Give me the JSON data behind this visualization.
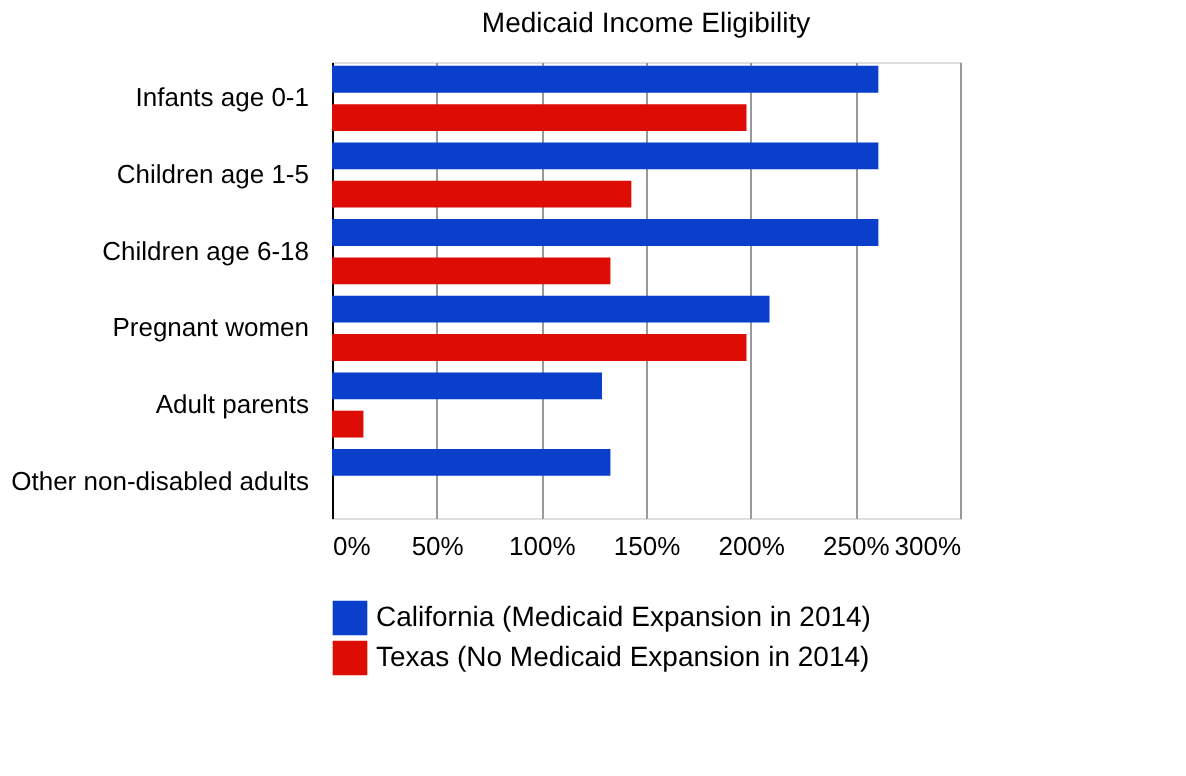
{
  "chart_data": {
    "type": "bar",
    "orientation": "horizontal",
    "title": "Medicaid Income Eligibility",
    "categories": [
      "Infants age 0-1",
      "Children age 1-5",
      "Children age 6-18",
      "Pregnant women",
      "Adult parents",
      "Other non-disabled adults"
    ],
    "series": [
      {
        "name": "California (Medicaid Expansion in 2014)",
        "color": "#0a3fcc",
        "values": [
          261,
          261,
          261,
          209,
          129,
          133
        ]
      },
      {
        "name": "Texas (No Medicaid Expansion in 2014)",
        "color": "#dd0d06",
        "values": [
          198,
          143,
          133,
          198,
          15,
          null
        ]
      }
    ],
    "xlim": [
      0,
      300
    ],
    "xticks": [
      {
        "value": 0,
        "label": "0%"
      },
      {
        "value": 50,
        "label": "50%"
      },
      {
        "value": 100,
        "label": "100%"
      },
      {
        "value": 150,
        "label": "150%"
      },
      {
        "value": 200,
        "label": "200%"
      },
      {
        "value": 250,
        "label": "250%"
      },
      {
        "value": 300,
        "label": "300%"
      }
    ],
    "grid": "x",
    "legend": "bottom"
  }
}
